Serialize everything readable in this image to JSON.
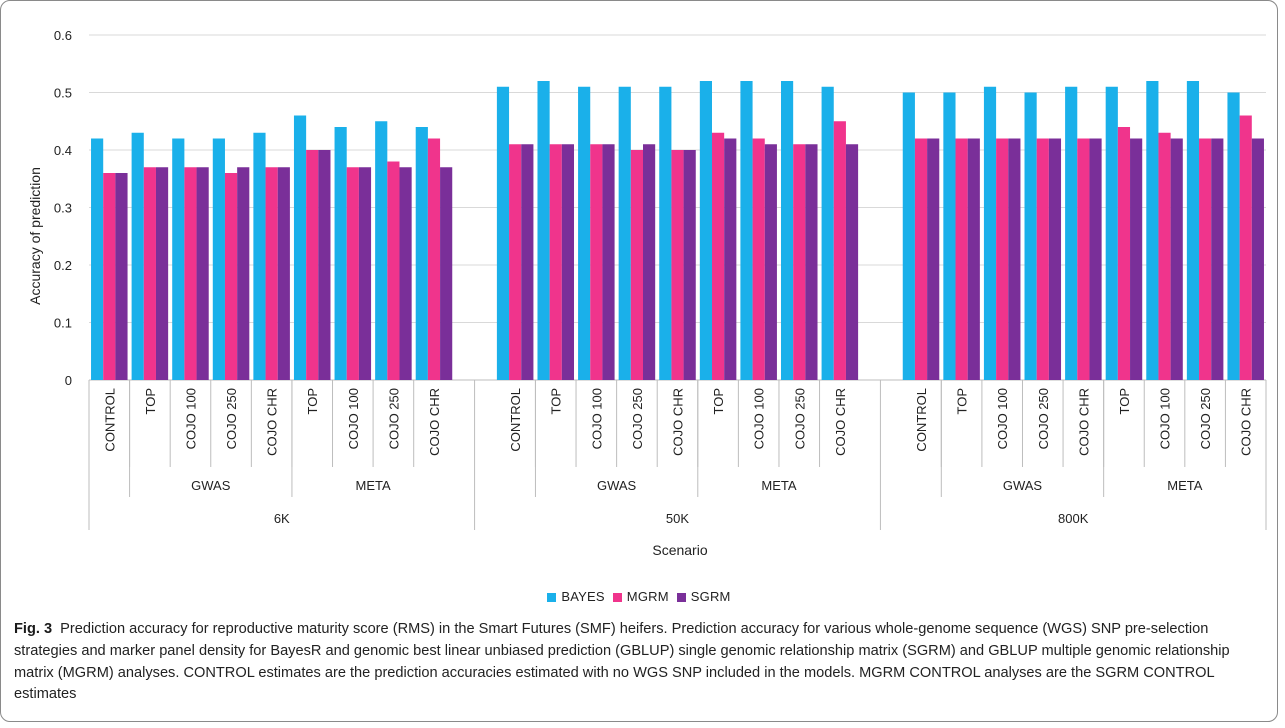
{
  "chart_data": {
    "type": "bar",
    "ylabel": "Accuracy of prediction",
    "xlabel": "Scenario",
    "ylim": [
      0,
      0.6
    ],
    "yticks": [
      "0",
      "0.1",
      "0.2",
      "0.3",
      "0.4",
      "0.5",
      "0.6"
    ],
    "grid": true,
    "legend_position": "bottom",
    "categories": [
      "CONTROL",
      "TOP",
      "COJO 100",
      "COJO 250",
      "COJO CHR",
      "TOP",
      "COJO 100",
      "COJO 250",
      "COJO CHR",
      "CONTROL",
      "TOP",
      "COJO 100",
      "COJO 250",
      "COJO CHR",
      "TOP",
      "COJO 100",
      "COJO 250",
      "COJO CHR",
      "CONTROL",
      "TOP",
      "COJO 100",
      "COJO 250",
      "COJO CHR",
      "TOP",
      "COJO 100",
      "COJO 250",
      "COJO CHR"
    ],
    "groups": [
      {
        "name": "6K",
        "subgroups": [
          {
            "name": "",
            "categories": [
              "CONTROL"
            ]
          },
          {
            "name": "GWAS",
            "categories": [
              "TOP",
              "COJO 100",
              "COJO 250",
              "COJO CHR"
            ]
          },
          {
            "name": "META",
            "categories": [
              "TOP",
              "COJO 100",
              "COJO 250",
              "COJO CHR"
            ]
          }
        ]
      },
      {
        "name": "50K",
        "subgroups": [
          {
            "name": "",
            "categories": [
              "CONTROL"
            ]
          },
          {
            "name": "GWAS",
            "categories": [
              "TOP",
              "COJO 100",
              "COJO 250",
              "COJO CHR"
            ]
          },
          {
            "name": "META",
            "categories": [
              "TOP",
              "COJO 100",
              "COJO 250",
              "COJO CHR"
            ]
          }
        ]
      },
      {
        "name": "800K",
        "subgroups": [
          {
            "name": "",
            "categories": [
              "CONTROL"
            ]
          },
          {
            "name": "GWAS",
            "categories": [
              "TOP",
              "COJO 100",
              "COJO 250",
              "COJO CHR"
            ]
          },
          {
            "name": "META",
            "categories": [
              "TOP",
              "COJO 100",
              "COJO 250",
              "COJO CHR"
            ]
          }
        ]
      }
    ],
    "series": [
      {
        "name": "BAYES",
        "color": "#1ab0ea",
        "values": [
          0.42,
          0.43,
          0.42,
          0.42,
          0.43,
          0.46,
          0.44,
          0.45,
          0.44,
          0.51,
          0.52,
          0.51,
          0.51,
          0.51,
          0.52,
          0.52,
          0.52,
          0.51,
          0.5,
          0.5,
          0.51,
          0.5,
          0.51,
          0.51,
          0.52,
          0.52,
          0.5
        ]
      },
      {
        "name": "MGRM",
        "color": "#f0348c",
        "values": [
          0.36,
          0.37,
          0.37,
          0.36,
          0.37,
          0.4,
          0.37,
          0.38,
          0.42,
          0.41,
          0.41,
          0.41,
          0.4,
          0.4,
          0.43,
          0.42,
          0.41,
          0.45,
          0.42,
          0.42,
          0.42,
          0.42,
          0.42,
          0.44,
          0.43,
          0.42,
          0.46
        ]
      },
      {
        "name": "SGRM",
        "color": "#7a2f99",
        "values": [
          0.36,
          0.37,
          0.37,
          0.37,
          0.37,
          0.4,
          0.37,
          0.37,
          0.37,
          0.41,
          0.41,
          0.41,
          0.41,
          0.4,
          0.42,
          0.41,
          0.41,
          0.41,
          0.42,
          0.42,
          0.42,
          0.42,
          0.42,
          0.42,
          0.42,
          0.42,
          0.42
        ]
      }
    ]
  },
  "caption": {
    "label": "Fig. 3",
    "text": "Prediction accuracy for reproductive maturity score (RMS) in the Smart Futures (SMF) heifers. Prediction accuracy for various whole-genome sequence (WGS) SNP pre-selection strategies and marker panel density for BayesR and genomic best linear unbiased prediction (GBLUP) single genomic relationship matrix (SGRM) and GBLUP multiple genomic relationship matrix (MGRM) analyses. CONTROL estimates are the prediction accuracies estimated with no WGS SNP included in the models. MGRM CONTROL analyses are the SGRM CONTROL estimates"
  }
}
